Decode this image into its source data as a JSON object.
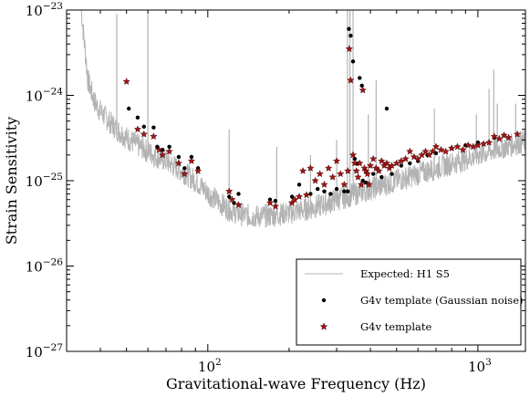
{
  "chart_data": {
    "type": "scatter",
    "xlabel": "Gravitational-wave Frequency (Hz)",
    "ylabel": "Strain Sensitivity",
    "xscale": "log",
    "yscale": "log",
    "xlim": [
      30,
      1500
    ],
    "ylim": [
      1e-27,
      1e-23
    ],
    "grid": false,
    "legend_position": "bottom-right",
    "x_ticks": [
      {
        "value": 100,
        "base": "10",
        "exp": "2"
      },
      {
        "value": 1000,
        "base": "10",
        "exp": "3"
      }
    ],
    "y_ticks": [
      {
        "value": 1e-27,
        "base": "10",
        "exp": "−27"
      },
      {
        "value": 1e-26,
        "base": "10",
        "exp": "−26"
      },
      {
        "value": 1e-25,
        "base": "10",
        "exp": "−25"
      },
      {
        "value": 1e-24,
        "base": "10",
        "exp": "−24"
      },
      {
        "value": 1e-23,
        "base": "10",
        "exp": "−23"
      }
    ],
    "series": [
      {
        "name": "Expected: H1 S5",
        "type": "line",
        "color": "#b3b3b3",
        "x": [
          34,
          36,
          38,
          40,
          43,
          46,
          50,
          55,
          60,
          65,
          70,
          80,
          90,
          100,
          110,
          120,
          130,
          140,
          150,
          170,
          200,
          230,
          260,
          300,
          350,
          400,
          450,
          500,
          600,
          700,
          800,
          900,
          1000,
          1200,
          1500
        ],
        "y": [
          1e-23,
          1.5e-24,
          8.5e-25,
          6.5e-25,
          5e-25,
          4e-25,
          3.2e-25,
          2.6e-25,
          2.2e-25,
          1.9e-25,
          1.7e-25,
          1.3e-25,
          1e-25,
          7.2e-26,
          5.6e-26,
          4.6e-26,
          4.1e-26,
          3.9e-26,
          3.8e-26,
          3.9e-26,
          4.2e-26,
          4.6e-26,
          5.1e-26,
          6e-26,
          7e-26,
          8e-26,
          9e-26,
          1e-25,
          1.2e-25,
          1.4e-25,
          1.6e-25,
          1.8e-25,
          2e-25,
          2.4e-25,
          2.9e-25
        ],
        "lines": [
          {
            "f": 46,
            "top": 9e-24
          },
          {
            "f": 60,
            "top": 9e-24
          },
          {
            "f": 120,
            "top": 4e-25
          },
          {
            "f": 180,
            "top": 2.5e-25
          },
          {
            "f": 240,
            "top": 2e-25
          },
          {
            "f": 300,
            "top": 3e-25
          },
          {
            "f": 329,
            "top": 1e-23
          },
          {
            "f": 336,
            "top": 1e-23
          },
          {
            "f": 345,
            "top": 1e-23
          },
          {
            "f": 393,
            "top": 6e-25
          },
          {
            "f": 420,
            "top": 1.5e-24
          },
          {
            "f": 690,
            "top": 7e-25
          },
          {
            "f": 987,
            "top": 6e-25
          },
          {
            "f": 1100,
            "top": 1.2e-24
          },
          {
            "f": 1145,
            "top": 2e-24
          },
          {
            "f": 1180,
            "top": 8e-25
          },
          {
            "f": 1380,
            "top": 8e-25
          }
        ]
      },
      {
        "name": "G4v template (Gaussian noise)",
        "type": "scatter",
        "marker": "dot",
        "color": "#000000",
        "x": [
          51,
          55,
          58,
          63,
          65,
          68,
          72,
          78,
          82,
          87,
          92,
          120,
          125,
          130,
          170,
          178,
          205,
          218,
          240,
          255,
          270,
          285,
          300,
          320,
          330,
          333,
          338,
          345,
          350,
          358,
          365,
          372,
          375,
          385,
          395,
          410,
          420,
          440,
          460,
          480,
          520,
          560,
          600,
          650,
          700,
          800,
          900,
          1000,
          1150,
          1250
        ],
        "y": [
          7e-25,
          5.5e-25,
          4.3e-25,
          4.2e-25,
          2.5e-25,
          2.3e-25,
          2.5e-25,
          1.9e-25,
          1.4e-25,
          1.9e-25,
          1.4e-25,
          6.5e-26,
          5.5e-26,
          7e-26,
          6e-26,
          5.8e-26,
          6.5e-26,
          9e-26,
          7e-26,
          8e-26,
          7.5e-26,
          7e-26,
          8e-26,
          7.5e-26,
          7.5e-26,
          6e-24,
          5e-24,
          2.5e-24,
          1.8e-25,
          1.6e-25,
          1.6e-24,
          1.3e-24,
          1e-25,
          9.5e-26,
          9e-26,
          1.2e-25,
          1.4e-25,
          1.1e-25,
          7e-25,
          1.2e-25,
          1.5e-25,
          1.6e-25,
          1.7e-25,
          2e-25,
          2.1e-25,
          2.4e-25,
          2.6e-25,
          2.8e-25,
          3.2e-25,
          3.4e-25
        ]
      },
      {
        "name": "G4v template",
        "type": "scatter",
        "marker": "star",
        "color": "#a31414",
        "x": [
          50,
          55,
          58,
          63,
          66,
          68,
          72,
          78,
          82,
          87,
          92,
          120,
          123,
          130,
          170,
          178,
          205,
          210,
          218,
          225,
          232,
          240,
          250,
          260,
          270,
          280,
          290,
          300,
          310,
          320,
          330,
          334,
          338,
          345,
          350,
          355,
          360,
          365,
          370,
          375,
          380,
          385,
          390,
          395,
          400,
          410,
          420,
          430,
          440,
          450,
          460,
          470,
          480,
          500,
          520,
          540,
          560,
          580,
          600,
          620,
          640,
          660,
          680,
          700,
          730,
          760,
          800,
          840,
          880,
          920,
          960,
          1000,
          1050,
          1100,
          1150,
          1200,
          1250,
          1300,
          1400
        ],
        "y": [
          1.45e-24,
          4e-25,
          3.5e-25,
          3.3e-25,
          2.3e-25,
          2e-25,
          2.2e-25,
          1.6e-25,
          1.2e-25,
          1.7e-25,
          1.3e-25,
          7.5e-26,
          6e-26,
          5.2e-26,
          5.5e-26,
          5e-26,
          5.5e-26,
          6e-26,
          6.5e-26,
          1.3e-25,
          6.8e-26,
          1.4e-25,
          1e-25,
          1.2e-25,
          9e-26,
          1.4e-25,
          1.1e-25,
          1.7e-25,
          1.2e-25,
          9e-26,
          1.3e-25,
          3.5e-24,
          1.5e-24,
          2e-25,
          1.6e-25,
          1.3e-25,
          1.1e-25,
          1.6e-25,
          9e-26,
          1.15e-24,
          1.4e-25,
          1.3e-25,
          1.2e-25,
          9e-26,
          1.5e-25,
          1.8e-25,
          1.4e-25,
          1.3e-25,
          1.7e-25,
          1.5e-25,
          1.6e-25,
          1.4e-25,
          1.5e-25,
          1.6e-25,
          1.7e-25,
          1.8e-25,
          2.2e-25,
          1.9e-25,
          1.8e-25,
          2e-25,
          2.2e-25,
          2e-25,
          2.2e-25,
          2.5e-25,
          2.3e-25,
          2.2e-25,
          2.4e-25,
          2.5e-25,
          2.3e-25,
          2.6e-25,
          2.5e-25,
          2.6e-25,
          2.7e-25,
          2.8e-25,
          3.3e-25,
          3.1e-25,
          3.4e-25,
          3.2e-25,
          3.5e-25
        ]
      }
    ]
  }
}
